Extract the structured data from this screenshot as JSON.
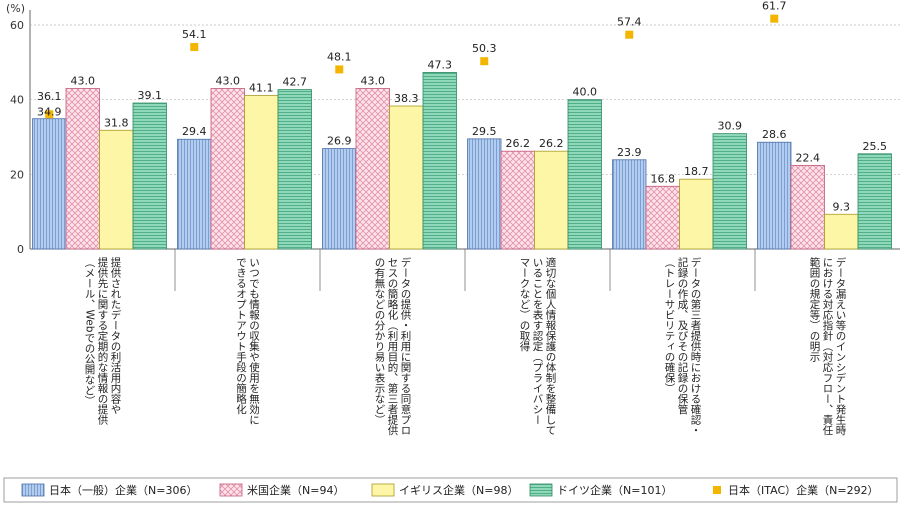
{
  "chart_data": {
    "type": "bar",
    "unit": "(%)",
    "ylim": [
      0,
      60
    ],
    "yticks": [
      0,
      20,
      40,
      60
    ],
    "categories": [
      [
        "提供されたデータの利活用内容や",
        "提供先に関する定期的な情報の提供",
        "（メール、Webでの公開など）"
      ],
      [
        "いつでも情報の収集や使用を無効に",
        "できるオプトアウト手段の簡略化"
      ],
      [
        "データの提供・利用に関する同意プロ",
        "セスの簡略化（利用目的、第三者提供",
        "の有無などの分かり易い表示など）"
      ],
      [
        "適切な個人情報保護の体制を整備して",
        "いることを表す認定（プライバシー",
        "マークなど）の取得"
      ],
      [
        "データの第三者提供時における確認・",
        "記録の作成、及びその記録の保管",
        "（トレーサビリティの確保）"
      ],
      [
        "データ漏えい等のインシデント発生時",
        "における対応指針（対応フロー、責任",
        "範囲の規定等）の明示"
      ]
    ],
    "series": [
      {
        "name": "日本（一般）企業（N=306）",
        "color": "#a9c4e8",
        "values": [
          34.9,
          29.4,
          26.9,
          29.5,
          23.9,
          28.6
        ]
      },
      {
        "name": "米国企業（N=94）",
        "color": "#f7c9d6",
        "values": [
          43.0,
          43.0,
          43.0,
          26.2,
          16.8,
          22.4
        ]
      },
      {
        "name": "イギリス企業（N=98）",
        "color": "#fdf6a6",
        "values": [
          31.8,
          41.1,
          38.3,
          26.2,
          18.7,
          9.3
        ]
      },
      {
        "name": "ドイツ企業（N=101）",
        "color": "#7fcfae",
        "values": [
          39.1,
          42.7,
          47.3,
          40.0,
          30.9,
          25.5
        ]
      }
    ],
    "markers": {
      "name": "日本（ITAC）企業（N=292）",
      "color": "#f3b500",
      "values": [
        36.1,
        54.1,
        48.1,
        50.3,
        57.4,
        61.7
      ]
    },
    "grid": true,
    "legend": "bottom"
  }
}
